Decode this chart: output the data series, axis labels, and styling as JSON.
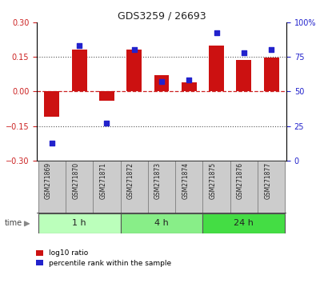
{
  "title": "GDS3259 / 26693",
  "samples": [
    "GSM271869",
    "GSM271870",
    "GSM271871",
    "GSM271872",
    "GSM271873",
    "GSM271874",
    "GSM271875",
    "GSM271876",
    "GSM271877"
  ],
  "log10_ratio": [
    -0.11,
    0.18,
    -0.04,
    0.18,
    0.07,
    0.04,
    0.2,
    0.135,
    0.145
  ],
  "percentile_rank": [
    13,
    83,
    27,
    80,
    57,
    58,
    92,
    78,
    80
  ],
  "ylim_left": [
    -0.3,
    0.3
  ],
  "ylim_right": [
    0,
    100
  ],
  "yticks_left": [
    -0.3,
    -0.15,
    0.0,
    0.15,
    0.3
  ],
  "yticks_right": [
    0,
    25,
    50,
    75,
    100
  ],
  "groups": [
    {
      "label": "1 h",
      "indices": [
        0,
        1,
        2
      ],
      "color": "#bbffbb"
    },
    {
      "label": "4 h",
      "indices": [
        3,
        4,
        5
      ],
      "color": "#88ee88"
    },
    {
      "label": "24 h",
      "indices": [
        6,
        7,
        8
      ],
      "color": "#44dd44"
    }
  ],
  "bar_color": "#cc1111",
  "dot_color": "#2222cc",
  "zero_line_color": "#cc2222",
  "dotted_line_color": "#555555",
  "bg_color": "#ffffff",
  "tick_label_color_left": "#cc2222",
  "tick_label_color_right": "#2222cc",
  "bar_width": 0.55,
  "time_label": "time",
  "label_col_color": "#cccccc",
  "label_col_edge": "#888888",
  "time_arrow_color": "#888888"
}
